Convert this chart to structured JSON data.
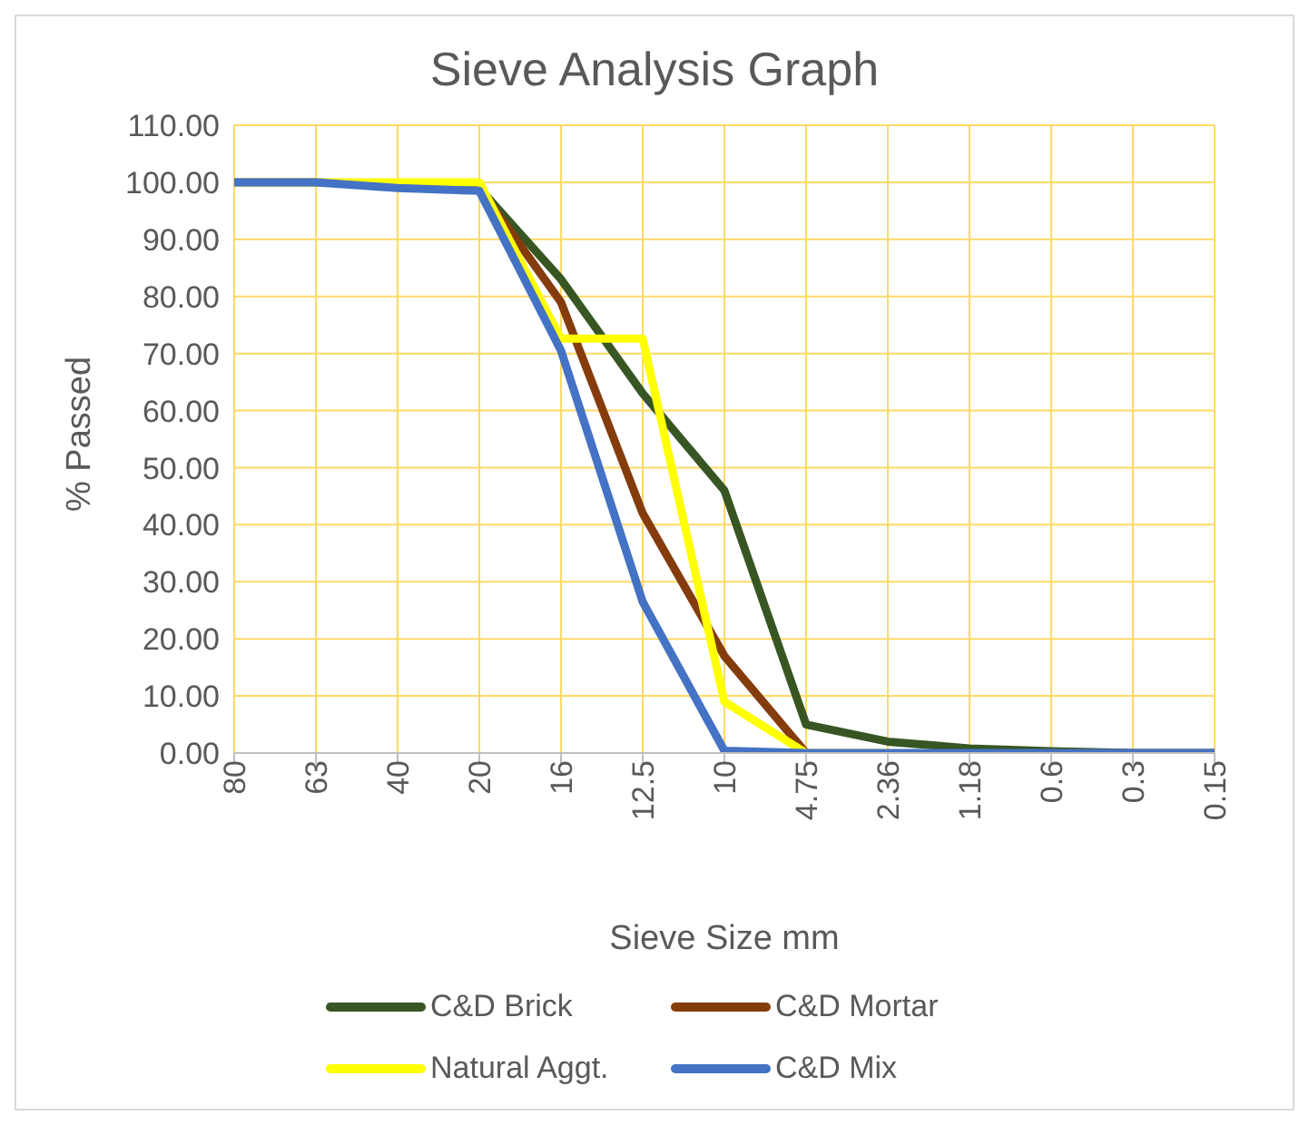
{
  "chart_data": {
    "type": "line",
    "title": "Sieve Analysis Graph",
    "xlabel": "Sieve Size mm",
    "ylabel": "% Passed",
    "categories": [
      "80",
      "63",
      "40",
      "20",
      "16",
      "12.5",
      "10",
      "4.75",
      "2.36",
      "1.18",
      "0.6",
      "0.3",
      "0.15"
    ],
    "series": [
      {
        "name": "C&D Brick",
        "color": "#375623",
        "values": [
          100,
          100,
          99.5,
          99,
          83,
          63,
          46,
          5,
          2,
          0.8,
          0.3,
          0,
          0
        ]
      },
      {
        "name": "C&D Mortar",
        "color": "#843c0c",
        "values": [
          null,
          null,
          null,
          99,
          79,
          42,
          17,
          0,
          null,
          null,
          null,
          null,
          null
        ]
      },
      {
        "name": "Natural Aggt.",
        "color": "#ffff00",
        "values": [
          100,
          100,
          100,
          100,
          72.6,
          72.6,
          9,
          0,
          0,
          null,
          null,
          null,
          null
        ]
      },
      {
        "name": "C&D Mix",
        "color": "#4472c4",
        "values": [
          100,
          100,
          99,
          98.5,
          70.5,
          26.5,
          0.4,
          0,
          0,
          0,
          0,
          0,
          0
        ]
      }
    ],
    "ylim": [
      0,
      110
    ],
    "yticks": [
      {
        "value": 0,
        "label": "0.00"
      },
      {
        "value": 10,
        "label": "10.00"
      },
      {
        "value": 20,
        "label": "20.00"
      },
      {
        "value": 30,
        "label": "30.00"
      },
      {
        "value": 40,
        "label": "40.00"
      },
      {
        "value": 50,
        "label": "50.00"
      },
      {
        "value": 60,
        "label": "60.00"
      },
      {
        "value": 70,
        "label": "70.00"
      },
      {
        "value": 80,
        "label": "80.00"
      },
      {
        "value": 90,
        "label": "90.00"
      },
      {
        "value": 100,
        "label": "100.00"
      },
      {
        "value": 110,
        "label": "110.00"
      }
    ],
    "grid": true,
    "legend": "bottom",
    "marker": "none",
    "line_style": "solid"
  }
}
